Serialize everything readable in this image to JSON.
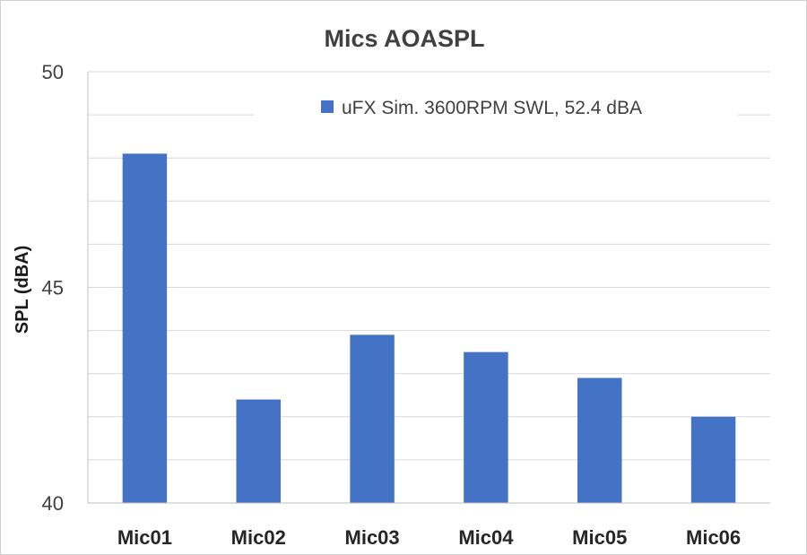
{
  "chart_data": {
    "type": "bar",
    "title": "Mics AOASPL",
    "xlabel": "",
    "ylabel": "SPL (dBA)",
    "ylim": [
      40,
      50
    ],
    "yticks_labeled": [
      40,
      45,
      50
    ],
    "grid_step": 1,
    "grid": true,
    "legend_position": "top-right",
    "categories": [
      "Mic01",
      "Mic02",
      "Mic03",
      "Mic04",
      "Mic05",
      "Mic06"
    ],
    "series": [
      {
        "name": "uFX Sim. 3600RPM SWL, 52.4 dBA",
        "color": "#4472c4",
        "values": [
          48.1,
          42.4,
          43.9,
          43.5,
          42.9,
          42.0
        ]
      }
    ]
  }
}
